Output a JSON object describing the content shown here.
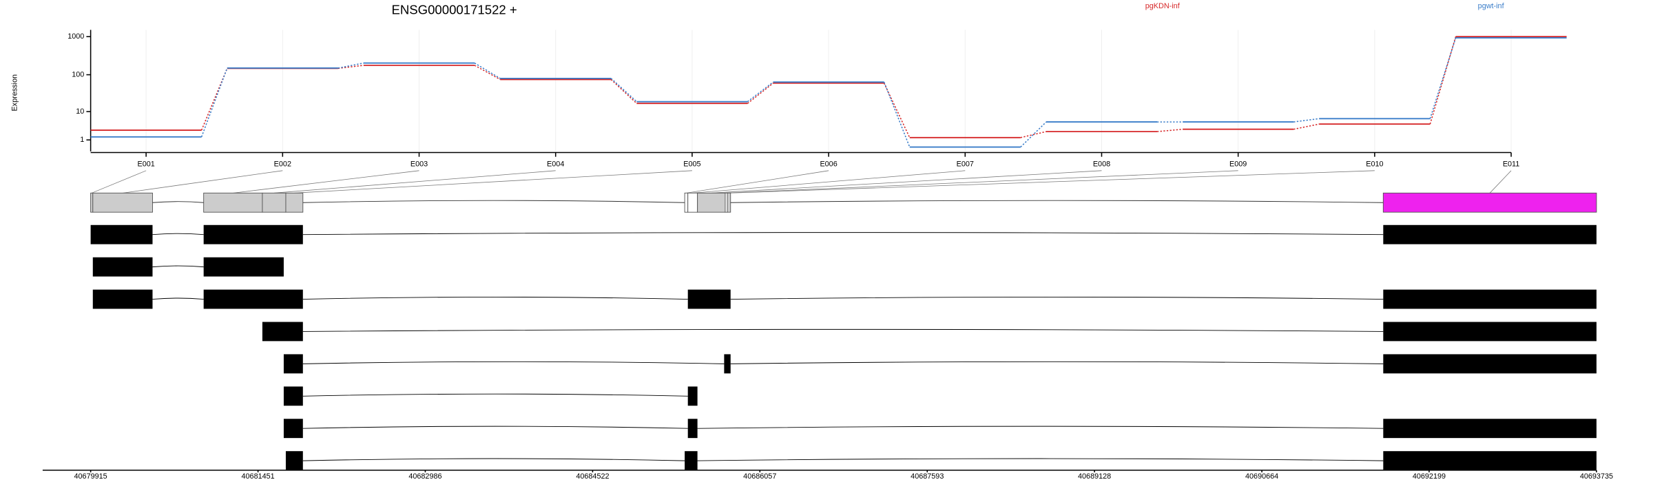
{
  "chart_data": [
    {
      "type": "line",
      "title": "ENSG00000171522 +",
      "ylabel": "Expression",
      "categories": [
        "E001",
        "E002",
        "E003",
        "E004",
        "E005",
        "E006",
        "E007",
        "E008",
        "E009",
        "E010",
        "E011"
      ],
      "series": [
        {
          "name": "pgKDN-inf",
          "color": "#d62728",
          "values": [
            2.6,
            147,
            177,
            75,
            17,
            60,
            1.3,
            2.3,
            2.8,
            4.2,
            1000
          ]
        },
        {
          "name": "pgwt-inf",
          "color": "#3a7dc9",
          "values": [
            1.4,
            150,
            203,
            80,
            19,
            64,
            0.3,
            4.9,
            4.9,
            6.2,
            930
          ]
        }
      ],
      "ylim": [
        0,
        1500
      ],
      "yticks": [
        1,
        10,
        100,
        1000
      ],
      "yscale": "log1p",
      "grid": true
    },
    {
      "type": "gene-model",
      "xlim": [
        40679915,
        40693735
      ],
      "xticks": [
        40679915,
        40681451,
        40682986,
        40684522,
        40686057,
        40687593,
        40689128,
        40690664,
        40692199,
        40693735
      ],
      "bins": [
        [
          40679915,
          40679935
        ],
        [
          40679935,
          40680483
        ],
        [
          40680952,
          40681491
        ],
        [
          40681491,
          40681706
        ],
        [
          40681706,
          40681863
        ],
        [
          40685367,
          40685396
        ],
        [
          40685396,
          40685484
        ],
        [
          40685484,
          40685739
        ],
        [
          40685739,
          40685758
        ],
        [
          40685758,
          40685788
        ],
        [
          40691778,
          40693735
        ]
      ],
      "bin_colors": [
        "#cccccc",
        "#cccccc",
        "#cccccc",
        "#cccccc",
        "#cccccc",
        "#ffffff",
        "#ffffff",
        "#cccccc",
        "#ffffff",
        "#cccccc",
        "#ee22ee"
      ],
      "transcript_color": "#000000",
      "transcripts": [
        [
          [
            40679915,
            40680483
          ],
          [
            40680952,
            40681863
          ],
          [
            40691778,
            40693735
          ]
        ],
        [
          [
            40679935,
            40680483
          ],
          [
            40680952,
            40681687
          ]
        ],
        [
          [
            40679935,
            40680483
          ],
          [
            40680952,
            40681863
          ],
          [
            40685396,
            40685788
          ],
          [
            40691778,
            40693735
          ]
        ],
        [
          [
            40681491,
            40681863
          ],
          [
            40691778,
            40693735
          ]
        ],
        [
          [
            40681687,
            40681863
          ],
          [
            40685729,
            40685788
          ],
          [
            40691778,
            40693735
          ]
        ],
        [
          [
            40681687,
            40681863
          ],
          [
            40685396,
            40685484
          ]
        ],
        [
          [
            40681687,
            40681863
          ],
          [
            40685396,
            40685484
          ],
          [
            40691778,
            40693735
          ]
        ],
        [
          [
            40681706,
            40681863
          ],
          [
            40685367,
            40685484
          ],
          [
            40691778,
            40693735
          ]
        ]
      ]
    }
  ]
}
